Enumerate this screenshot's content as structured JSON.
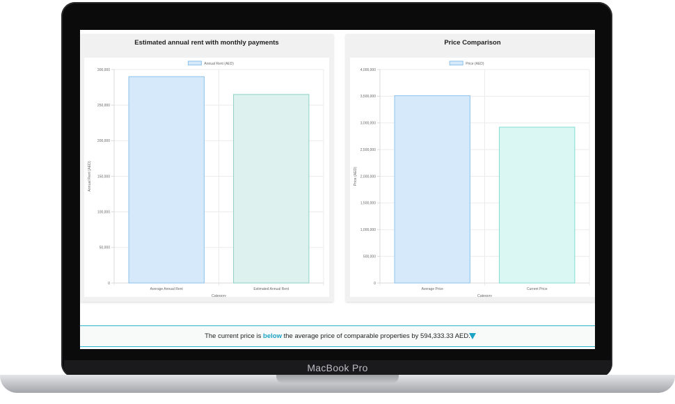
{
  "device": {
    "brand_label": "MacBook Pro"
  },
  "charts": [
    {
      "title": "Estimated annual rent with monthly payments",
      "legend": "Annual Rent (AED)",
      "ylabel": "Annual Rent (AED)",
      "xlabel": "Category",
      "yticks": [
        "300,000",
        "250,000",
        "200,000",
        "150,000",
        "100,000",
        "50,000",
        "0"
      ],
      "categories": [
        "Average Annual Rent",
        "Estimated Annual Rent"
      ]
    },
    {
      "title": "Price Comparison",
      "legend": "Price (AED)",
      "ylabel": "Price (AED)",
      "xlabel": "Category",
      "yticks": [
        "4,000,000",
        "3,500,000",
        "3,000,000",
        "2,500,000",
        "2,000,000",
        "1,500,000",
        "1,000,000",
        "500,000",
        "0"
      ],
      "categories": [
        "Average Price",
        "Current Price"
      ]
    }
  ],
  "chart_data": [
    {
      "type": "bar",
      "title": "Estimated annual rent with monthly payments",
      "xlabel": "Category",
      "ylabel": "Annual Rent (AED)",
      "categories": [
        "Average Annual Rent",
        "Estimated Annual Rent"
      ],
      "series": [
        {
          "name": "Annual Rent (AED)",
          "values": [
            290000,
            265000
          ]
        }
      ],
      "ylim": [
        0,
        300000
      ],
      "grid": true,
      "legend_position": "top",
      "colors": {
        "bar_fills": [
          "#d6e9fb",
          "#ddf1ee"
        ],
        "bar_strokes": [
          "#8cc2ec",
          "#8ed1c6"
        ]
      }
    },
    {
      "type": "bar",
      "title": "Price Comparison",
      "xlabel": "Category",
      "ylabel": "Price (AED)",
      "categories": [
        "Average Price",
        "Current Price"
      ],
      "series": [
        {
          "name": "Price (AED)",
          "values": [
            3510000,
            2920000
          ]
        }
      ],
      "ylim": [
        0,
        4000000
      ],
      "grid": true,
      "legend_position": "top",
      "colors": {
        "bar_fills": [
          "#d6e9fb",
          "#daf7f3"
        ],
        "bar_strokes": [
          "#8cc2ec",
          "#7fddd0"
        ]
      }
    }
  ],
  "banner": {
    "prefix": "The current price is",
    "highlight": "below",
    "suffix": "the average price of comparable properties by 594,333.33 AED.",
    "accent_color": "#1aa3c4",
    "icon": "triangle-down-icon"
  }
}
